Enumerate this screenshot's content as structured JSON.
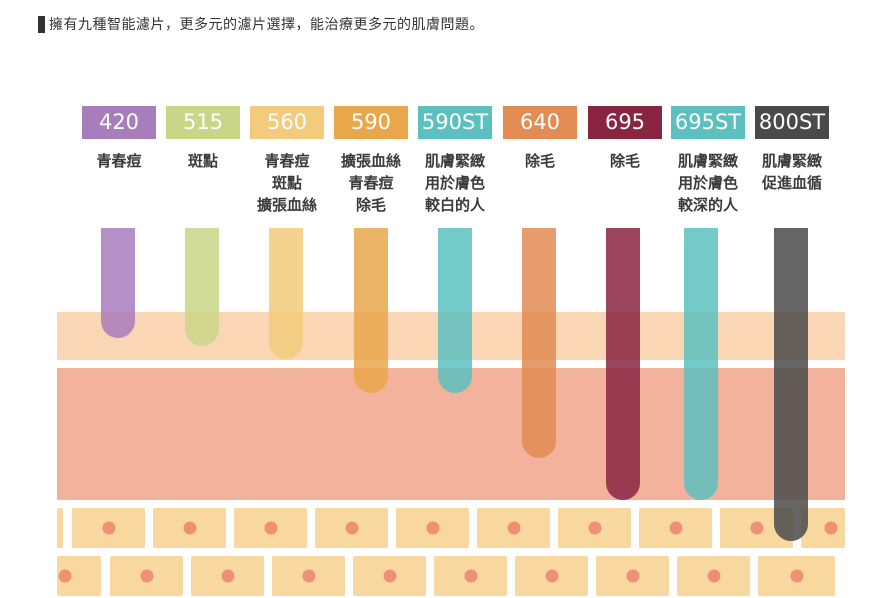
{
  "header": {
    "text": "擁有九種智能濾片，更多元的濾片選擇，能治療更多元的肌膚問題。"
  },
  "filters": [
    {
      "code": "420",
      "color": "#a87dbc",
      "depth": "epidermis",
      "labels": [
        "青春痘"
      ]
    },
    {
      "code": "515",
      "color": "#cad687",
      "depth": "epidermis",
      "labels": [
        "斑點"
      ]
    },
    {
      "code": "560",
      "color": "#f2cb7c",
      "depth": "epidermis",
      "labels": [
        "青春痘",
        "斑點",
        "擴張血絲"
      ]
    },
    {
      "code": "590",
      "color": "#e9a74c",
      "depth": "upper-dermis",
      "labels": [
        "擴張血絲",
        "青春痘",
        "除毛"
      ]
    },
    {
      "code": "590ST",
      "color": "#5cc0bf",
      "depth": "upper-dermis",
      "labels": [
        "肌膚緊緻",
        "用於膚色",
        "較白的人"
      ]
    },
    {
      "code": "640",
      "color": "#e28b52",
      "depth": "mid-dermis",
      "labels": [
        "除毛"
      ]
    },
    {
      "code": "695",
      "color": "#8a2443",
      "depth": "deep-dermis",
      "labels": [
        "除毛"
      ]
    },
    {
      "code": "695ST",
      "color": "#5cc0bf",
      "depth": "deep-dermis",
      "labels": [
        "肌膚緊緻",
        "用於膚色",
        "較深的人"
      ]
    },
    {
      "code": "800ST",
      "color": "#4a4a4a",
      "depth": "subcutaneous",
      "labels": [
        "肌膚緊緻",
        "促進血循"
      ]
    }
  ]
}
